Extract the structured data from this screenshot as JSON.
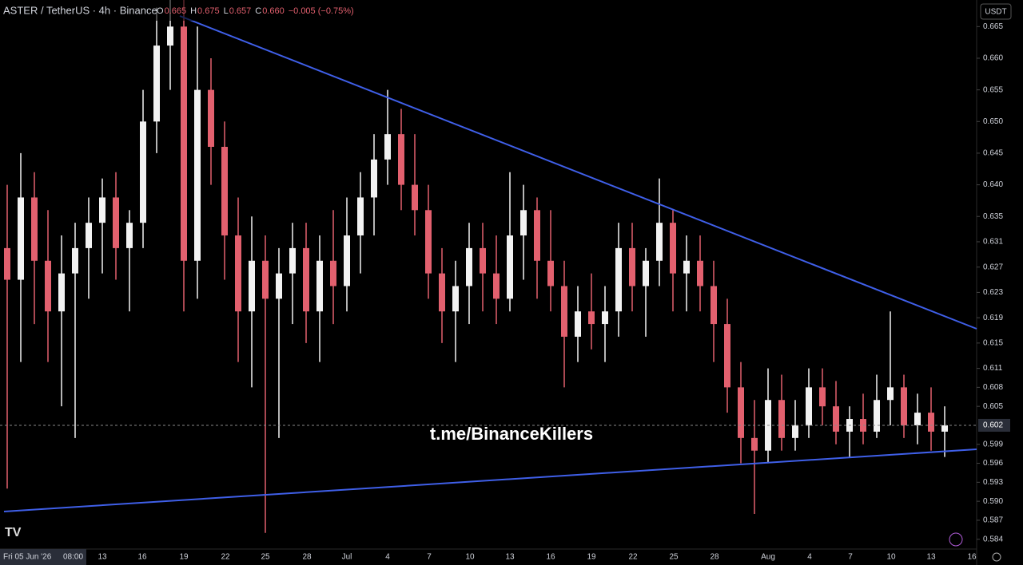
{
  "chart_data": {
    "type": "candlestick",
    "title": "ASTER / TetherUS · 4h · Binance",
    "ohlc_header": {
      "o_label": "O",
      "o": "0.665",
      "h_label": "H",
      "h": "0.675",
      "l_label": "L",
      "l": "0.657",
      "c_label": "C",
      "c": "0.660",
      "change": "−0.005 (−0.75%)"
    },
    "currency": "USDT",
    "watermark": "t.me/BinanceKillers",
    "crosshair_date": "Fri 05 Jun '26",
    "crosshair_time": "08:00",
    "x_labels": [
      "13",
      "16",
      "19",
      "22",
      "25",
      "28",
      "Jul",
      "4",
      "7",
      "10",
      "13",
      "16",
      "19",
      "22",
      "25",
      "28",
      "Aug",
      "4",
      "7",
      "10",
      "13",
      "16"
    ],
    "up_color": "#f2f2f2",
    "down_color": "#e2606e",
    "open": [
      0.63,
      0.625,
      0.638,
      0.628,
      0.62,
      0.626,
      0.63,
      0.634,
      0.638,
      0.63,
      0.634,
      0.65,
      0.662,
      0.665,
      0.628,
      0.655,
      0.646,
      0.632,
      0.62,
      0.628,
      0.622,
      0.626,
      0.63,
      0.62,
      0.628,
      0.624,
      0.632,
      0.638,
      0.644,
      0.648,
      0.64,
      0.636,
      0.626,
      0.62,
      0.624,
      0.63,
      0.626,
      0.622,
      0.632,
      0.636,
      0.628,
      0.624,
      0.616,
      0.62,
      0.618,
      0.62,
      0.63,
      0.624,
      0.628,
      0.634,
      0.626,
      0.628,
      0.624,
      0.618,
      0.608,
      0.6,
      0.598,
      0.606,
      0.6,
      0.602,
      0.608,
      0.605,
      0.601,
      0.603,
      0.601,
      0.606,
      0.608,
      0.602,
      0.604,
      0.601
    ],
    "high": [
      0.64,
      0.645,
      0.642,
      0.636,
      0.632,
      0.634,
      0.638,
      0.641,
      0.642,
      0.636,
      0.655,
      0.668,
      0.675,
      0.672,
      0.665,
      0.66,
      0.65,
      0.638,
      0.635,
      0.632,
      0.63,
      0.634,
      0.634,
      0.632,
      0.636,
      0.638,
      0.642,
      0.648,
      0.655,
      0.652,
      0.648,
      0.64,
      0.63,
      0.628,
      0.634,
      0.634,
      0.632,
      0.642,
      0.64,
      0.638,
      0.636,
      0.628,
      0.624,
      0.626,
      0.624,
      0.634,
      0.634,
      0.63,
      0.641,
      0.636,
      0.632,
      0.632,
      0.628,
      0.622,
      0.612,
      0.606,
      0.611,
      0.61,
      0.606,
      0.611,
      0.611,
      0.609,
      0.605,
      0.607,
      0.61,
      0.62,
      0.61,
      0.607,
      0.608,
      0.605
    ],
    "low": [
      0.592,
      0.612,
      0.618,
      0.612,
      0.605,
      0.6,
      0.622,
      0.626,
      0.625,
      0.62,
      0.63,
      0.645,
      0.655,
      0.62,
      0.622,
      0.64,
      0.625,
      0.612,
      0.608,
      0.585,
      0.6,
      0.618,
      0.615,
      0.612,
      0.618,
      0.62,
      0.626,
      0.632,
      0.64,
      0.636,
      0.632,
      0.622,
      0.615,
      0.612,
      0.618,
      0.62,
      0.618,
      0.62,
      0.625,
      0.622,
      0.62,
      0.608,
      0.612,
      0.614,
      0.612,
      0.616,
      0.62,
      0.616,
      0.624,
      0.62,
      0.62,
      0.62,
      0.612,
      0.604,
      0.596,
      0.588,
      0.596,
      0.598,
      0.598,
      0.6,
      0.602,
      0.599,
      0.597,
      0.599,
      0.6,
      0.602,
      0.6,
      0.599,
      0.598,
      0.597
    ],
    "close": [
      0.625,
      0.638,
      0.628,
      0.62,
      0.626,
      0.63,
      0.634,
      0.638,
      0.63,
      0.634,
      0.65,
      0.662,
      0.665,
      0.628,
      0.655,
      0.646,
      0.632,
      0.62,
      0.628,
      0.622,
      0.626,
      0.63,
      0.62,
      0.628,
      0.624,
      0.632,
      0.638,
      0.644,
      0.648,
      0.64,
      0.636,
      0.626,
      0.62,
      0.624,
      0.63,
      0.626,
      0.622,
      0.632,
      0.636,
      0.628,
      0.624,
      0.616,
      0.62,
      0.618,
      0.62,
      0.63,
      0.624,
      0.628,
      0.634,
      0.626,
      0.628,
      0.624,
      0.618,
      0.608,
      0.6,
      0.598,
      0.606,
      0.6,
      0.602,
      0.608,
      0.605,
      0.601,
      0.603,
      0.601,
      0.606,
      0.608,
      0.602,
      0.604,
      0.601,
      0.602
    ],
    "last_price": 0.602,
    "ylim": [
      0.5822,
      0.6692
    ],
    "yticks": [
      {
        "value": 0.665,
        "label": "0.665"
      },
      {
        "value": 0.66,
        "label": "0.660"
      },
      {
        "value": 0.655,
        "label": "0.655"
      },
      {
        "value": 0.65,
        "label": "0.650"
      },
      {
        "value": 0.645,
        "label": "0.645"
      },
      {
        "value": 0.64,
        "label": "0.640"
      },
      {
        "value": 0.635,
        "label": "0.635"
      },
      {
        "value": 0.631,
        "label": "0.631"
      },
      {
        "value": 0.627,
        "label": "0.627"
      },
      {
        "value": 0.623,
        "label": "0.623"
      },
      {
        "value": 0.619,
        "label": "0.619"
      },
      {
        "value": 0.615,
        "label": "0.615"
      },
      {
        "value": 0.611,
        "label": "0.611"
      },
      {
        "value": 0.608,
        "label": "0.608"
      },
      {
        "value": 0.605,
        "label": "0.605"
      },
      {
        "value": 0.599,
        "label": "0.599"
      },
      {
        "value": 0.596,
        "label": "0.596"
      },
      {
        "value": 0.593,
        "label": "0.593"
      },
      {
        "value": 0.59,
        "label": "0.590"
      },
      {
        "value": 0.587,
        "label": "0.587"
      },
      {
        "value": 0.584,
        "label": "0.584"
      }
    ]
  }
}
